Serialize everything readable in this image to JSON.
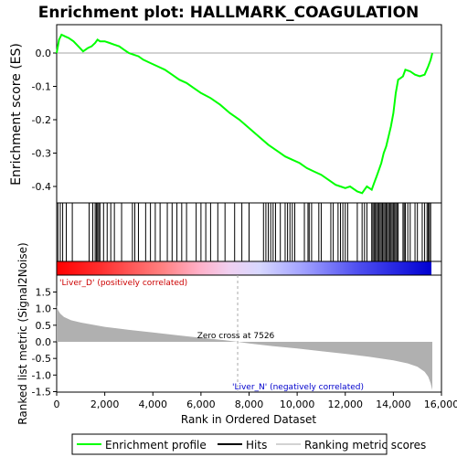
{
  "chart_data": {
    "type": "line",
    "title": "Enrichment plot: HALLMARK_COAGULATION",
    "top_panel": {
      "ylabel": "Enrichment score (ES)",
      "ylim": [
        -0.45,
        0.08
      ],
      "yticks": [
        0.0,
        -0.1,
        -0.2,
        -0.3,
        -0.4
      ],
      "ytick_labels": [
        "0.0",
        "-0.1",
        "-0.2",
        "-0.3",
        "-0.4"
      ],
      "series": [
        {
          "name": "Enrichment profile",
          "color": "#00ff00",
          "x": [
            0,
            100,
            200,
            350,
            500,
            700,
            900,
            1100,
            1300,
            1450,
            1600,
            1700,
            1800,
            2000,
            2200,
            2400,
            2600,
            2800,
            3000,
            3200,
            3400,
            3600,
            3900,
            4200,
            4500,
            4800,
            5100,
            5400,
            5700,
            6000,
            6400,
            6800,
            7200,
            7600,
            8000,
            8400,
            8800,
            9200,
            9500,
            9800,
            10100,
            10400,
            10700,
            11000,
            11300,
            11600,
            11800,
            12000,
            12200,
            12500,
            12700,
            12800,
            12900,
            13000,
            13100,
            13200,
            13300,
            13400,
            13500,
            13600,
            13700,
            13800,
            13900,
            14000,
            14100,
            14200,
            14300,
            14400,
            14500,
            14700,
            14900,
            15100,
            15300,
            15450,
            15550,
            15620
          ],
          "y": [
            0.0,
            0.04,
            0.055,
            0.05,
            0.045,
            0.035,
            0.02,
            0.005,
            0.015,
            0.02,
            0.03,
            0.04,
            0.035,
            0.035,
            0.03,
            0.025,
            0.02,
            0.01,
            0.0,
            -0.005,
            -0.01,
            -0.02,
            -0.03,
            -0.04,
            -0.05,
            -0.065,
            -0.08,
            -0.09,
            -0.105,
            -0.12,
            -0.135,
            -0.155,
            -0.18,
            -0.2,
            -0.225,
            -0.25,
            -0.275,
            -0.295,
            -0.31,
            -0.32,
            -0.33,
            -0.345,
            -0.355,
            -0.365,
            -0.38,
            -0.395,
            -0.4,
            -0.405,
            -0.4,
            -0.415,
            -0.42,
            -0.41,
            -0.4,
            -0.405,
            -0.41,
            -0.39,
            -0.37,
            -0.35,
            -0.33,
            -0.3,
            -0.28,
            -0.25,
            -0.22,
            -0.18,
            -0.12,
            -0.08,
            -0.075,
            -0.07,
            -0.05,
            -0.055,
            -0.065,
            -0.07,
            -0.065,
            -0.04,
            -0.02,
            0.0
          ]
        }
      ]
    },
    "hits": {
      "name": "Hits",
      "positions": [
        50,
        150,
        250,
        400,
        650,
        1350,
        1500,
        1600,
        1650,
        1700,
        1750,
        1800,
        1950,
        2100,
        2250,
        2400,
        2700,
        3150,
        3250,
        3400,
        3700,
        3900,
        4100,
        4300,
        4600,
        4800,
        5000,
        5200,
        5400,
        5800,
        6000,
        6200,
        6400,
        6700,
        7000,
        7400,
        7700,
        8000,
        8600,
        8700,
        8800,
        8900,
        9000,
        9100,
        9300,
        9500,
        9600,
        9700,
        9800,
        9900,
        10300,
        10450,
        10500,
        10600,
        10900,
        11000,
        11400,
        11500,
        11700,
        11800,
        11900,
        12000,
        12100,
        12500,
        12700,
        12800,
        12900,
        13100,
        13150,
        13200,
        13250,
        13300,
        13350,
        13400,
        13450,
        13500,
        13550,
        13600,
        13650,
        13700,
        13750,
        13800,
        13850,
        13900,
        13950,
        14000,
        14050,
        14100,
        14150,
        14200,
        14400,
        14450,
        14500,
        14600,
        14700,
        14900,
        15000,
        15200,
        15300,
        15400,
        15450,
        15500,
        15550
      ]
    },
    "bottom_panel": {
      "ylabel": "Ranked list metric (Signal2Noise)",
      "ylim": [
        -1.55,
        1.75
      ],
      "yticks": [
        1.5,
        1.0,
        0.5,
        0.0,
        -0.5,
        -1.0,
        -1.5
      ],
      "ytick_labels": [
        "1.5",
        "1.0",
        "0.5",
        "0.0",
        "-0.5",
        "-1.0",
        "-1.5"
      ],
      "metric_x": [
        0,
        60,
        150,
        300,
        600,
        1000,
        2000,
        3000,
        4000,
        5000,
        6000,
        7000,
        7526,
        8000,
        9000,
        10000,
        11000,
        12000,
        13000,
        14000,
        14600,
        15000,
        15300,
        15450,
        15550,
        15620
      ],
      "metric_y": [
        1.1,
        0.95,
        0.85,
        0.75,
        0.65,
        0.58,
        0.45,
        0.36,
        0.28,
        0.2,
        0.12,
        0.05,
        0.0,
        -0.05,
        -0.13,
        -0.2,
        -0.28,
        -0.36,
        -0.45,
        -0.56,
        -0.65,
        -0.75,
        -0.9,
        -1.05,
        -1.25,
        -1.45
      ],
      "fill_color": "#b0b0b0",
      "zero_cross_label": "Zero cross at 7526",
      "zero_cross_x": 7526,
      "pos_label": "'Liver_D' (positively correlated)",
      "neg_label": "'Liver_N' (negatively correlated)",
      "pos_color": "#cc0000",
      "neg_color": "#0000cc"
    },
    "xaxis": {
      "xlabel": "Rank in Ordered Dataset",
      "xlim": [
        0,
        16000
      ],
      "xticks": [
        0,
        2000,
        4000,
        6000,
        8000,
        10000,
        12000,
        14000,
        16000
      ],
      "xtick_labels": [
        "0",
        "2,000",
        "4,000",
        "6,000",
        "8,000",
        "10,000",
        "12,000",
        "14,000",
        "16,000"
      ],
      "n_genes": 15620
    },
    "legend": {
      "placement": "bottom",
      "items": [
        {
          "label": "Enrichment profile",
          "color": "#00ff00",
          "kind": "line"
        },
        {
          "label": "Hits",
          "color": "#000000",
          "kind": "line"
        },
        {
          "label": "Ranking metric scores",
          "color": "#d3d3d3",
          "kind": "line"
        }
      ]
    }
  }
}
